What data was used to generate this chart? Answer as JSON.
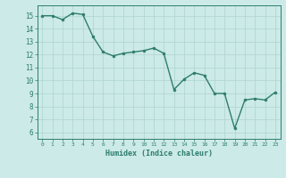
{
  "x": [
    0,
    1,
    2,
    3,
    4,
    5,
    6,
    7,
    8,
    9,
    10,
    11,
    12,
    13,
    14,
    15,
    16,
    17,
    18,
    19,
    20,
    21,
    22,
    23
  ],
  "y": [
    15.0,
    15.0,
    14.7,
    15.2,
    15.1,
    13.4,
    12.2,
    11.9,
    12.1,
    12.2,
    12.3,
    12.5,
    12.1,
    9.3,
    10.1,
    10.6,
    10.4,
    9.0,
    9.0,
    6.3,
    8.5,
    8.6,
    8.5,
    9.1
  ],
  "xlabel": "Humidex (Indice chaleur)",
  "xlim": [
    -0.5,
    23.5
  ],
  "ylim": [
    5.5,
    15.8
  ],
  "yticks": [
    6,
    7,
    8,
    9,
    10,
    11,
    12,
    13,
    14,
    15
  ],
  "xticks": [
    0,
    1,
    2,
    3,
    4,
    5,
    6,
    7,
    8,
    9,
    10,
    11,
    12,
    13,
    14,
    15,
    16,
    17,
    18,
    19,
    20,
    21,
    22,
    23
  ],
  "line_color": "#2e7d6e",
  "marker_color": "#2e7d6e",
  "bg_color": "#cceae7",
  "grid_color": "#aed4d0",
  "tick_color": "#2e7d6e",
  "label_color": "#2e7d6e",
  "font_name": "monospace"
}
